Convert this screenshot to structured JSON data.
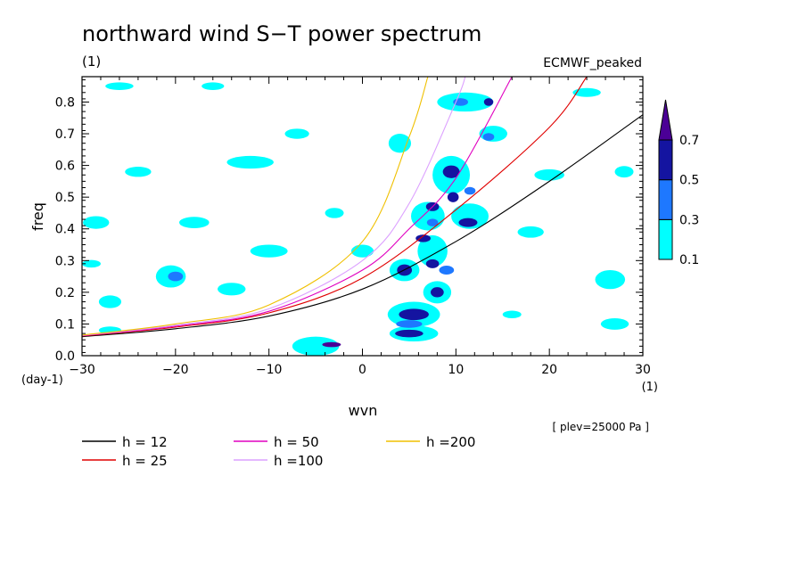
{
  "chart_data": {
    "type": "contour",
    "title": "northward wind S−T power spectrum",
    "subtitle_left": "(1)",
    "subtitle_right": "ECMWF_peaked",
    "xlabel": "wvn",
    "ylabel": "freq",
    "x_unit": "(1)",
    "y_unit": "(day-1)",
    "xlim": [
      -30,
      30
    ],
    "ylim": [
      0,
      0.88
    ],
    "x_ticks": [
      -30,
      -20,
      -10,
      0,
      10,
      20,
      30
    ],
    "x_tick_labels": [
      "−30",
      "−20",
      "−10",
      "0",
      "10",
      "20",
      "30"
    ],
    "y_ticks": [
      0,
      0.1,
      0.2,
      0.3,
      0.4,
      0.5,
      0.6,
      0.7,
      0.8
    ],
    "y_tick_labels": [
      "0.0",
      "0.1",
      "0.2",
      "0.3",
      "0.4",
      "0.5",
      "0.6",
      "0.7",
      "0.8"
    ],
    "annotation": "[ plev=25000 Pa ]",
    "colorbar": {
      "levels": [
        0.1,
        0.3,
        0.5,
        0.7
      ],
      "labels": [
        "0.1",
        "0.3",
        "0.5",
        "0.7"
      ],
      "colors": [
        "#00ffff",
        "#1e78ff",
        "#1414a0",
        "#4b0096"
      ]
    },
    "series": [
      {
        "name": "h = 12",
        "color": "#000000",
        "equivalent_depth": 12,
        "x": [
          -30,
          -20,
          -10,
          0,
          10,
          20,
          30
        ],
        "y": [
          0.06,
          0.085,
          0.125,
          0.21,
          0.36,
          0.55,
          0.76
        ]
      },
      {
        "name": "h = 25",
        "color": "#e00000",
        "equivalent_depth": 25,
        "x": [
          -30,
          -20,
          -10,
          0,
          10,
          20,
          24
        ],
        "y": [
          0.062,
          0.09,
          0.135,
          0.245,
          0.46,
          0.72,
          0.88
        ]
      },
      {
        "name": "h = 50",
        "color": "#e000c0",
        "equivalent_depth": 50,
        "x": [
          -30,
          -20,
          -10,
          0,
          5,
          10,
          16
        ],
        "y": [
          0.063,
          0.093,
          0.14,
          0.27,
          0.4,
          0.56,
          0.88
        ]
      },
      {
        "name": "h =100",
        "color": "#dca0ff",
        "equivalent_depth": 100,
        "x": [
          -30,
          -20,
          -10,
          0,
          5,
          10,
          11
        ],
        "y": [
          0.064,
          0.096,
          0.148,
          0.3,
          0.48,
          0.8,
          0.88
        ]
      },
      {
        "name": "h =200",
        "color": "#f0c000",
        "equivalent_depth": 200,
        "x": [
          -30,
          -20,
          -10,
          0,
          5,
          7
        ],
        "y": [
          0.065,
          0.1,
          0.16,
          0.36,
          0.69,
          0.88
        ]
      }
    ],
    "contours": [
      {
        "level": 0.7,
        "x": -3.3,
        "y": 0.035,
        "rx": 1.0,
        "ry": 0.008
      },
      {
        "level": 0.5,
        "x": 4.5,
        "y": 0.27,
        "rx": 0.8,
        "ry": 0.018
      },
      {
        "level": 0.5,
        "x": 5.5,
        "y": 0.13,
        "rx": 1.6,
        "ry": 0.018
      },
      {
        "level": 0.5,
        "x": 5.0,
        "y": 0.07,
        "rx": 1.5,
        "ry": 0.012
      },
      {
        "level": 0.5,
        "x": 8.0,
        "y": 0.2,
        "rx": 0.7,
        "ry": 0.016
      },
      {
        "level": 0.5,
        "x": 7.5,
        "y": 0.29,
        "rx": 0.7,
        "ry": 0.014
      },
      {
        "level": 0.5,
        "x": 6.5,
        "y": 0.37,
        "rx": 0.8,
        "ry": 0.012
      },
      {
        "level": 0.5,
        "x": 9.5,
        "y": 0.58,
        "rx": 0.9,
        "ry": 0.02
      },
      {
        "level": 0.5,
        "x": 9.7,
        "y": 0.5,
        "rx": 0.6,
        "ry": 0.016
      },
      {
        "level": 0.5,
        "x": 7.5,
        "y": 0.47,
        "rx": 0.7,
        "ry": 0.014
      },
      {
        "level": 0.5,
        "x": 11.3,
        "y": 0.42,
        "rx": 1.0,
        "ry": 0.014
      },
      {
        "level": 0.5,
        "x": 13.5,
        "y": 0.8,
        "rx": 0.5,
        "ry": 0.012
      },
      {
        "level": 0.3,
        "x": -20,
        "y": 0.25,
        "rx": 0.8,
        "ry": 0.015
      },
      {
        "level": 0.3,
        "x": 5.0,
        "y": 0.1,
        "rx": 1.4,
        "ry": 0.012
      },
      {
        "level": 0.3,
        "x": 7.5,
        "y": 0.42,
        "rx": 0.6,
        "ry": 0.012
      },
      {
        "level": 0.3,
        "x": 9.0,
        "y": 0.27,
        "rx": 0.8,
        "ry": 0.014
      },
      {
        "level": 0.3,
        "x": 13.5,
        "y": 0.69,
        "rx": 0.6,
        "ry": 0.012
      },
      {
        "level": 0.3,
        "x": 10.5,
        "y": 0.8,
        "rx": 0.8,
        "ry": 0.012
      },
      {
        "level": 0.3,
        "x": 11.5,
        "y": 0.52,
        "rx": 0.6,
        "ry": 0.012
      },
      {
        "level": 0.1,
        "x": -28.5,
        "y": 0.42,
        "rx": 1.4,
        "ry": 0.02
      },
      {
        "level": 0.1,
        "x": -29,
        "y": 0.29,
        "rx": 1.0,
        "ry": 0.012
      },
      {
        "level": 0.1,
        "x": -27,
        "y": 0.17,
        "rx": 1.2,
        "ry": 0.02
      },
      {
        "level": 0.1,
        "x": -27,
        "y": 0.08,
        "rx": 1.2,
        "ry": 0.012
      },
      {
        "level": 0.1,
        "x": -26,
        "y": 0.85,
        "rx": 1.5,
        "ry": 0.012
      },
      {
        "level": 0.1,
        "x": -24,
        "y": 0.58,
        "rx": 1.4,
        "ry": 0.016
      },
      {
        "level": 0.1,
        "x": -20.5,
        "y": 0.25,
        "rx": 1.6,
        "ry": 0.035
      },
      {
        "level": 0.1,
        "x": -18,
        "y": 0.42,
        "rx": 1.6,
        "ry": 0.018
      },
      {
        "level": 0.1,
        "x": -16,
        "y": 0.85,
        "rx": 1.2,
        "ry": 0.012
      },
      {
        "level": 0.1,
        "x": -14,
        "y": 0.21,
        "rx": 1.5,
        "ry": 0.02
      },
      {
        "level": 0.1,
        "x": -12,
        "y": 0.61,
        "rx": 2.5,
        "ry": 0.02
      },
      {
        "level": 0.1,
        "x": -10,
        "y": 0.33,
        "rx": 2.0,
        "ry": 0.02
      },
      {
        "level": 0.1,
        "x": -7,
        "y": 0.7,
        "rx": 1.3,
        "ry": 0.016
      },
      {
        "level": 0.1,
        "x": -5,
        "y": 0.03,
        "rx": 2.5,
        "ry": 0.03
      },
      {
        "level": 0.1,
        "x": -3,
        "y": 0.45,
        "rx": 1.0,
        "ry": 0.016
      },
      {
        "level": 0.1,
        "x": 0,
        "y": 0.33,
        "rx": 1.2,
        "ry": 0.02
      },
      {
        "level": 0.1,
        "x": 5.5,
        "y": 0.13,
        "rx": 2.8,
        "ry": 0.04
      },
      {
        "level": 0.1,
        "x": 5.5,
        "y": 0.07,
        "rx": 2.6,
        "ry": 0.025
      },
      {
        "level": 0.1,
        "x": 4.5,
        "y": 0.27,
        "rx": 1.6,
        "ry": 0.035
      },
      {
        "level": 0.1,
        "x": 8.0,
        "y": 0.2,
        "rx": 1.5,
        "ry": 0.035
      },
      {
        "level": 0.1,
        "x": 7.5,
        "y": 0.33,
        "rx": 1.6,
        "ry": 0.05
      },
      {
        "level": 0.1,
        "x": 7.0,
        "y": 0.44,
        "rx": 1.8,
        "ry": 0.045
      },
      {
        "level": 0.1,
        "x": 9.5,
        "y": 0.57,
        "rx": 2.0,
        "ry": 0.06
      },
      {
        "level": 0.1,
        "x": 11.5,
        "y": 0.44,
        "rx": 2.0,
        "ry": 0.04
      },
      {
        "level": 0.1,
        "x": 4.0,
        "y": 0.67,
        "rx": 1.2,
        "ry": 0.03
      },
      {
        "level": 0.1,
        "x": 11.0,
        "y": 0.8,
        "rx": 3.0,
        "ry": 0.03
      },
      {
        "level": 0.1,
        "x": 14.0,
        "y": 0.7,
        "rx": 1.5,
        "ry": 0.025
      },
      {
        "level": 0.1,
        "x": 18.0,
        "y": 0.39,
        "rx": 1.4,
        "ry": 0.018
      },
      {
        "level": 0.1,
        "x": 20.0,
        "y": 0.57,
        "rx": 1.6,
        "ry": 0.018
      },
      {
        "level": 0.1,
        "x": 24.0,
        "y": 0.83,
        "rx": 1.5,
        "ry": 0.014
      },
      {
        "level": 0.1,
        "x": 26.5,
        "y": 0.24,
        "rx": 1.6,
        "ry": 0.03
      },
      {
        "level": 0.1,
        "x": 27.0,
        "y": 0.1,
        "rx": 1.5,
        "ry": 0.018
      },
      {
        "level": 0.1,
        "x": 28.0,
        "y": 0.58,
        "rx": 1.0,
        "ry": 0.018
      },
      {
        "level": 0.1,
        "x": 16.0,
        "y": 0.13,
        "rx": 1.0,
        "ry": 0.012
      }
    ]
  }
}
